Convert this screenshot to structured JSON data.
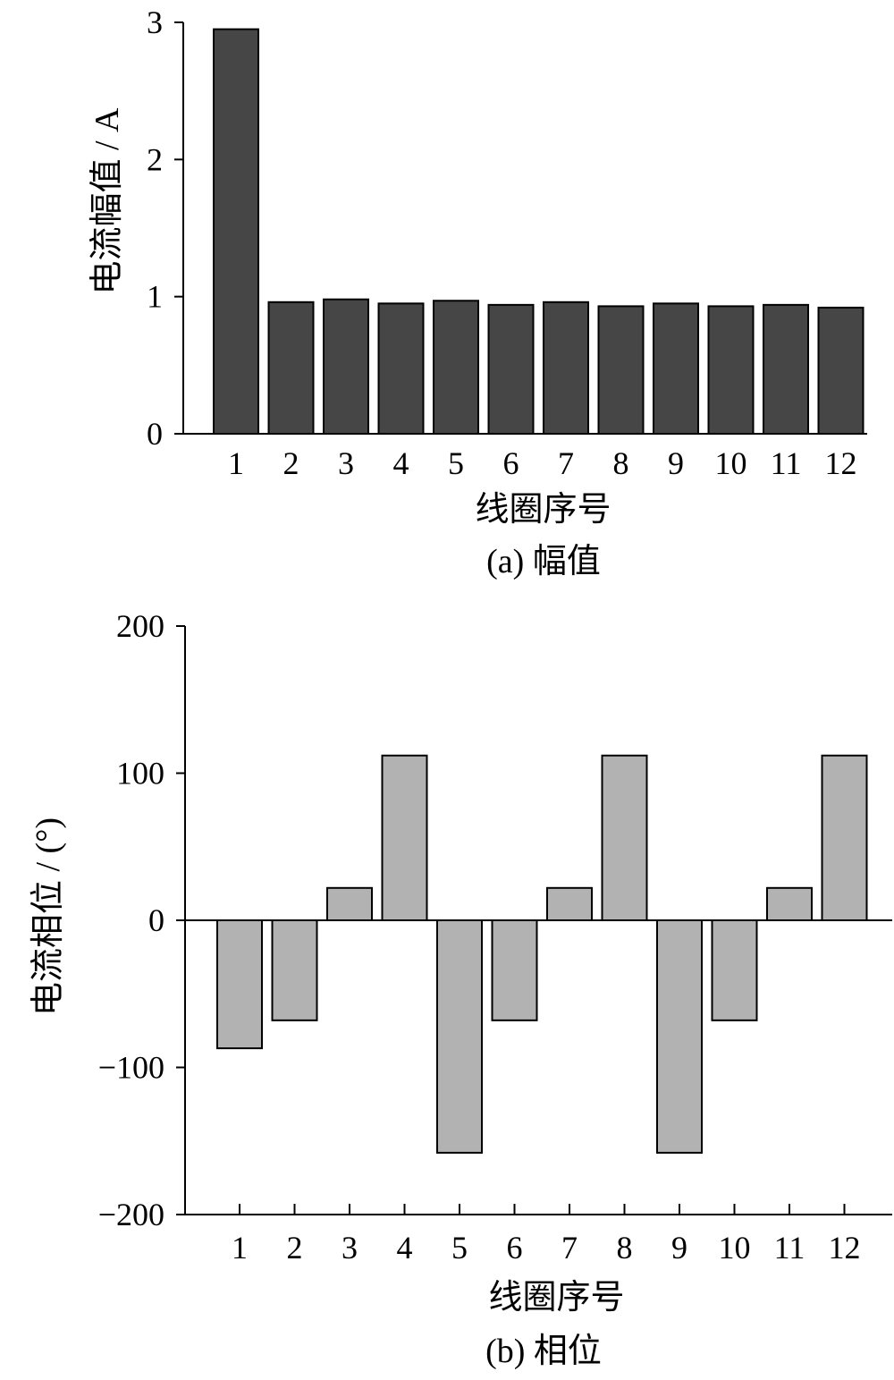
{
  "chart_data": [
    {
      "id": "a",
      "type": "bar",
      "categories": [
        "1",
        "2",
        "3",
        "4",
        "5",
        "6",
        "7",
        "8",
        "9",
        "10",
        "11",
        "12"
      ],
      "values": [
        2.95,
        0.96,
        0.98,
        0.95,
        0.97,
        0.94,
        0.96,
        0.93,
        0.95,
        0.93,
        0.94,
        0.92
      ],
      "xlabel": "线圈序号",
      "ylabel": "电流幅值 / A",
      "caption": "(a)  幅值",
      "ylim": [
        0,
        3
      ],
      "yticks": [
        0,
        1,
        2,
        3
      ],
      "ytick_labels": [
        "0",
        "1",
        "2",
        "3"
      ],
      "bar_color": "#464646",
      "grid": false
    },
    {
      "id": "b",
      "type": "bar",
      "categories": [
        "1",
        "2",
        "3",
        "4",
        "5",
        "6",
        "7",
        "8",
        "9",
        "10",
        "11",
        "12"
      ],
      "values": [
        -87,
        -68,
        22,
        112,
        -158,
        -68,
        22,
        112,
        -158,
        -68,
        22,
        112
      ],
      "xlabel": "线圈序号",
      "ylabel": "电流相位 / (°)",
      "caption": "(b)  相位",
      "ylim": [
        -200,
        200
      ],
      "yticks": [
        -200,
        -100,
        0,
        100,
        200
      ],
      "ytick_labels": [
        "−200",
        "−100",
        "0",
        "100",
        "200"
      ],
      "bar_color": "#b2b2b2",
      "grid": false
    }
  ]
}
